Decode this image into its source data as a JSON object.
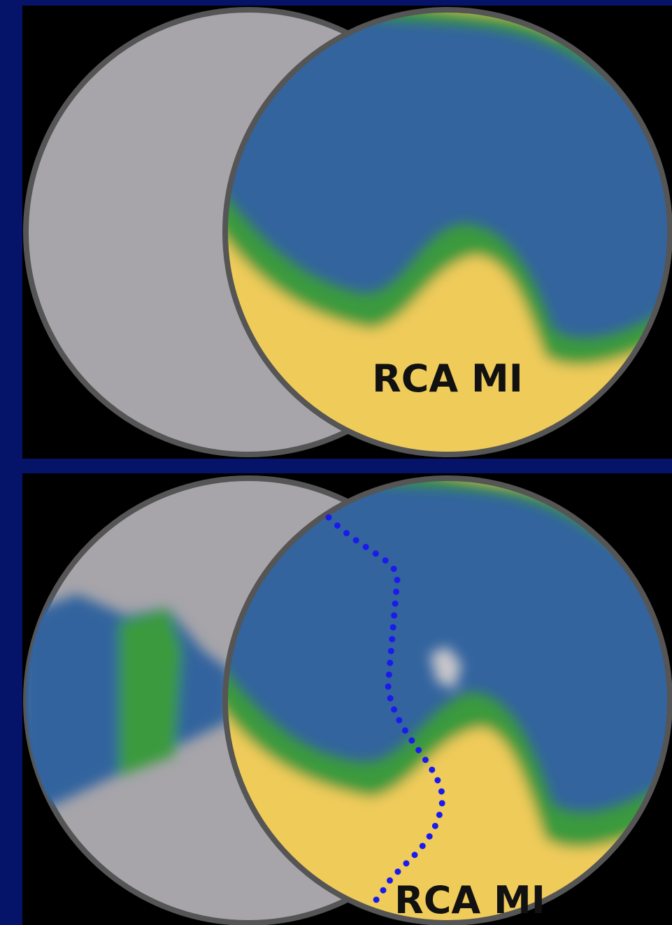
{
  "panels": [
    {
      "label": "RCA MI"
    },
    {
      "label": "RCA MI"
    }
  ]
}
